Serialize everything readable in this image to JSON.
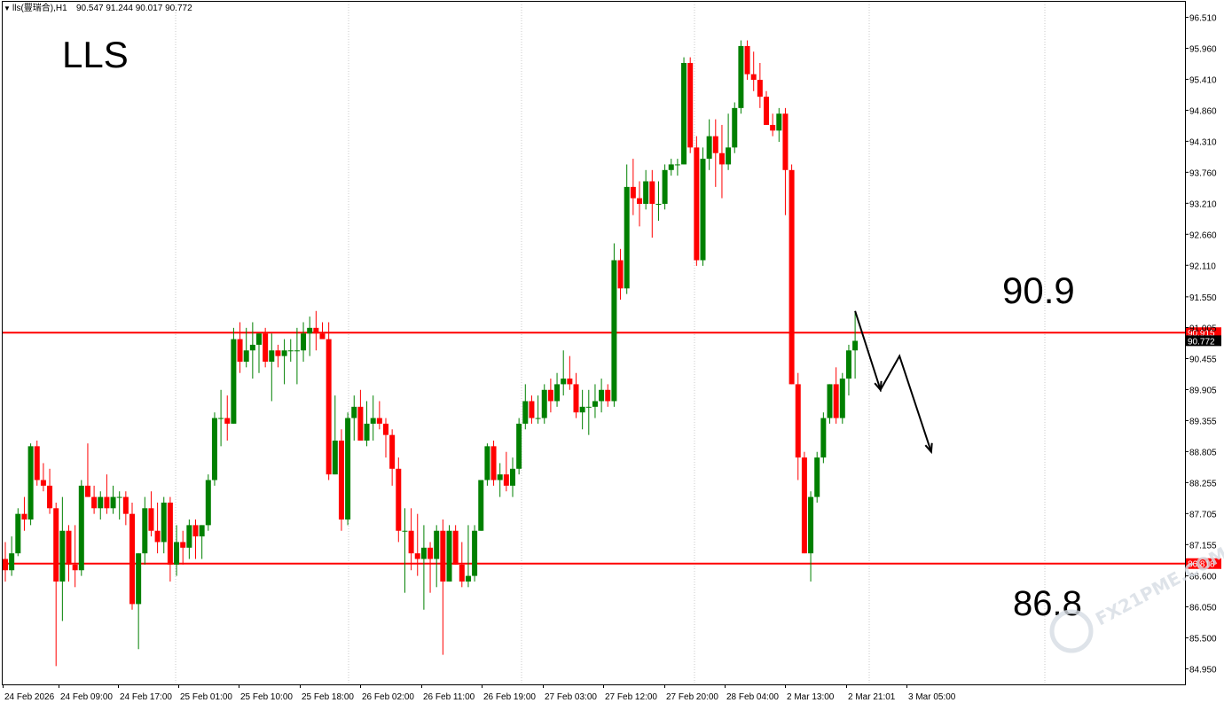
{
  "header": {
    "symbol_line": "lls(<span>),H1  90.547 91.244 90.017 90.772",
    "symbol": "lls(豐瑞合),H1",
    "ohlc": "90.547 91.244 90.017 90.772"
  },
  "annotations": {
    "title": "LLS",
    "resistance_label": "90.9",
    "support_label": "86.8",
    "watermark": "FX21PME.COM"
  },
  "colors": {
    "bull": "#008000",
    "bear": "#ff0000",
    "level_line": "#ff0000",
    "grid": "#c8c8c8",
    "arrow": "#000000"
  },
  "chart_data": {
    "type": "candlestick",
    "timeframe": "H1",
    "ylim": [
      84.675,
      96.785
    ],
    "y_ticks": [
      "96.510",
      "95.960",
      "95.410",
      "94.860",
      "94.310",
      "93.760",
      "93.210",
      "92.660",
      "92.110",
      "91.550",
      "91.005",
      "90.455",
      "89.905",
      "89.355",
      "88.805",
      "88.255",
      "87.705",
      "87.155",
      "86.600",
      "86.050",
      "85.500",
      "84.950"
    ],
    "x_ticks": [
      "24 Feb 2026",
      "24 Feb 09:00",
      "24 Feb 17:00",
      "25 Feb 01:00",
      "25 Feb 10:00",
      "25 Feb 18:00",
      "26 Feb 02:00",
      "26 Feb 11:00",
      "26 Feb 19:00",
      "27 Feb 03:00",
      "27 Feb 12:00",
      "27 Feb 20:00",
      "28 Feb 04:00",
      "2 Mar 13:00",
      "2 Mar 21:01",
      "3 Mar 05:00"
    ],
    "levels": [
      {
        "value": 90.915,
        "label": "90.915"
      },
      {
        "value": 86.818,
        "label": "86.818"
      }
    ],
    "current_price": {
      "value": 90.772,
      "label": "90.772"
    },
    "projection_path": [
      [
        0,
        91.3
      ],
      [
        4,
        89.9
      ],
      [
        7,
        90.5
      ],
      [
        12,
        88.8
      ]
    ],
    "ohlc": [
      [
        86.9,
        87.2,
        86.5,
        86.7
      ],
      [
        86.7,
        87.3,
        86.6,
        87.0
      ],
      [
        87.0,
        87.8,
        86.95,
        87.7
      ],
      [
        87.7,
        88.0,
        87.4,
        87.6
      ],
      [
        87.6,
        88.95,
        87.5,
        88.9
      ],
      [
        88.9,
        89.0,
        88.2,
        88.3
      ],
      [
        88.3,
        88.6,
        88.1,
        88.2
      ],
      [
        88.2,
        88.5,
        87.7,
        87.8
      ],
      [
        87.8,
        87.9,
        85.0,
        86.5
      ],
      [
        86.5,
        88.0,
        85.8,
        87.4
      ],
      [
        87.4,
        87.5,
        86.5,
        86.8
      ],
      [
        86.8,
        87.5,
        86.4,
        86.7
      ],
      [
        86.7,
        88.3,
        86.6,
        88.2
      ],
      [
        88.2,
        88.95,
        88.0,
        88.0
      ],
      [
        88.0,
        88.2,
        87.7,
        87.8
      ],
      [
        87.8,
        88.1,
        87.6,
        88.0
      ],
      [
        88.0,
        88.4,
        87.7,
        87.8
      ],
      [
        87.8,
        88.2,
        87.7,
        88.0
      ],
      [
        88.0,
        88.1,
        87.6,
        88.0
      ],
      [
        88.0,
        88.1,
        87.5,
        87.7
      ],
      [
        87.7,
        87.9,
        86.0,
        86.1
      ],
      [
        86.1,
        87.0,
        85.3,
        87.0
      ],
      [
        87.0,
        88.0,
        86.8,
        87.8
      ],
      [
        87.8,
        88.1,
        87.3,
        87.4
      ],
      [
        87.4,
        87.9,
        87.0,
        87.2
      ],
      [
        87.2,
        88.0,
        87.0,
        87.9
      ],
      [
        87.9,
        88.0,
        86.5,
        86.8
      ],
      [
        86.8,
        87.5,
        86.6,
        87.2
      ],
      [
        87.2,
        87.4,
        86.8,
        87.1
      ],
      [
        87.1,
        87.6,
        86.9,
        87.5
      ],
      [
        87.5,
        87.6,
        86.9,
        87.3
      ],
      [
        87.3,
        87.5,
        86.9,
        87.5
      ],
      [
        87.5,
        88.4,
        87.4,
        88.3
      ],
      [
        88.3,
        89.5,
        88.2,
        89.4
      ],
      [
        89.4,
        89.9,
        88.9,
        89.4
      ],
      [
        89.4,
        89.8,
        89.0,
        89.3
      ],
      [
        89.3,
        91.0,
        89.3,
        90.8
      ],
      [
        90.8,
        91.1,
        90.2,
        90.4
      ],
      [
        90.4,
        91.0,
        90.3,
        90.6
      ],
      [
        90.6,
        91.1,
        90.1,
        90.7
      ],
      [
        90.7,
        90.9,
        90.2,
        90.9
      ],
      [
        90.9,
        91.0,
        90.3,
        90.4
      ],
      [
        90.4,
        90.9,
        89.7,
        90.6
      ],
      [
        90.6,
        90.7,
        90.3,
        90.5
      ],
      [
        90.5,
        90.8,
        90.0,
        90.6
      ],
      [
        90.6,
        90.8,
        90.4,
        90.6
      ],
      [
        90.6,
        91.0,
        90.0,
        90.6
      ],
      [
        90.6,
        91.1,
        90.4,
        90.9
      ],
      [
        90.9,
        91.2,
        90.5,
        91.0
      ],
      [
        91.0,
        91.3,
        90.6,
        90.9
      ],
      [
        90.9,
        91.1,
        90.8,
        90.8
      ],
      [
        90.8,
        91.1,
        88.3,
        88.4
      ],
      [
        88.4,
        89.8,
        88.4,
        89.0
      ],
      [
        89.0,
        89.2,
        87.4,
        87.6
      ],
      [
        87.6,
        89.5,
        87.5,
        89.4
      ],
      [
        89.4,
        89.8,
        89.0,
        89.6
      ],
      [
        89.6,
        89.9,
        89.0,
        89.0
      ],
      [
        89.0,
        89.7,
        88.9,
        89.3
      ],
      [
        89.3,
        89.8,
        89.0,
        89.4
      ],
      [
        89.4,
        89.7,
        89.2,
        89.3
      ],
      [
        89.3,
        89.4,
        88.7,
        89.1
      ],
      [
        89.1,
        89.2,
        88.2,
        88.5
      ],
      [
        88.5,
        88.7,
        87.2,
        87.4
      ],
      [
        87.4,
        87.8,
        86.3,
        87.4
      ],
      [
        87.4,
        87.8,
        86.7,
        87.0
      ],
      [
        87.0,
        87.7,
        86.6,
        86.9
      ],
      [
        86.9,
        87.5,
        86.0,
        87.1
      ],
      [
        87.1,
        87.2,
        86.3,
        86.9
      ],
      [
        86.9,
        87.5,
        86.4,
        87.4
      ],
      [
        87.4,
        87.6,
        85.2,
        86.5
      ],
      [
        86.5,
        87.5,
        86.5,
        87.4
      ],
      [
        87.4,
        87.5,
        86.8,
        86.8
      ],
      [
        86.8,
        87.2,
        86.4,
        86.5
      ],
      [
        86.5,
        87.5,
        86.4,
        86.6
      ],
      [
        86.6,
        87.5,
        86.5,
        87.4
      ],
      [
        87.4,
        88.3,
        87.4,
        88.3
      ],
      [
        88.3,
        88.95,
        88.2,
        88.9
      ],
      [
        88.9,
        89.0,
        88.2,
        88.3
      ],
      [
        88.3,
        88.6,
        88.0,
        88.4
      ],
      [
        88.4,
        88.8,
        88.1,
        88.2
      ],
      [
        88.2,
        88.7,
        88.0,
        88.5
      ],
      [
        88.5,
        89.4,
        88.4,
        89.3
      ],
      [
        89.3,
        90.0,
        89.2,
        89.7
      ],
      [
        89.7,
        89.8,
        89.3,
        89.4
      ],
      [
        89.4,
        89.8,
        89.3,
        89.4
      ],
      [
        89.4,
        90.0,
        89.3,
        89.9
      ],
      [
        89.9,
        90.1,
        89.5,
        89.7
      ],
      [
        89.7,
        90.2,
        89.6,
        90.0
      ],
      [
        90.0,
        90.6,
        89.8,
        90.1
      ],
      [
        90.1,
        90.5,
        89.9,
        90.0
      ],
      [
        90.0,
        90.2,
        89.4,
        89.5
      ],
      [
        89.5,
        89.9,
        89.2,
        89.6
      ],
      [
        89.6,
        89.9,
        89.1,
        89.6
      ],
      [
        89.6,
        90.0,
        89.4,
        89.7
      ],
      [
        89.7,
        90.1,
        89.5,
        89.9
      ],
      [
        89.9,
        90.0,
        89.6,
        89.7
      ],
      [
        89.7,
        92.5,
        89.6,
        92.2
      ],
      [
        92.2,
        92.4,
        91.5,
        91.7
      ],
      [
        91.7,
        93.9,
        91.6,
        93.5
      ],
      [
        93.5,
        94.0,
        93.0,
        93.3
      ],
      [
        93.3,
        93.6,
        92.8,
        93.2
      ],
      [
        93.2,
        93.8,
        93.1,
        93.6
      ],
      [
        93.6,
        93.8,
        92.6,
        93.2
      ],
      [
        93.2,
        93.6,
        92.9,
        93.2
      ],
      [
        93.2,
        93.9,
        93.1,
        93.8
      ],
      [
        93.8,
        94.0,
        93.7,
        93.9
      ],
      [
        93.9,
        94.0,
        93.7,
        93.9
      ],
      [
        93.9,
        95.8,
        93.9,
        95.7
      ],
      [
        95.7,
        95.8,
        94.1,
        94.2
      ],
      [
        94.2,
        94.4,
        92.1,
        92.2
      ],
      [
        92.2,
        94.2,
        92.1,
        94.0
      ],
      [
        94.0,
        94.7,
        93.8,
        94.4
      ],
      [
        94.4,
        94.7,
        93.5,
        94.1
      ],
      [
        94.1,
        94.6,
        93.3,
        93.9
      ],
      [
        93.9,
        94.8,
        93.8,
        94.2
      ],
      [
        94.2,
        95.0,
        94.1,
        94.9
      ],
      [
        94.9,
        96.1,
        94.8,
        96.0
      ],
      [
        96.0,
        96.1,
        95.4,
        95.5
      ],
      [
        95.5,
        95.9,
        95.2,
        95.4
      ],
      [
        95.4,
        95.7,
        94.9,
        95.1
      ],
      [
        95.1,
        95.2,
        94.6,
        94.6
      ],
      [
        94.6,
        94.8,
        94.4,
        94.5
      ],
      [
        94.5,
        94.9,
        94.3,
        94.8
      ],
      [
        94.8,
        94.9,
        93.0,
        93.8
      ],
      [
        93.8,
        93.9,
        90.0,
        90.0
      ],
      [
        90.0,
        90.2,
        88.3,
        88.7
      ],
      [
        88.7,
        88.8,
        87.0,
        87.0
      ],
      [
        87.0,
        88.1,
        86.5,
        88.0
      ],
      [
        88.0,
        88.8,
        87.9,
        88.7
      ],
      [
        88.7,
        89.5,
        88.6,
        89.4
      ],
      [
        89.4,
        90.0,
        89.3,
        90.0
      ],
      [
        90.0,
        90.3,
        89.3,
        89.4
      ],
      [
        89.4,
        90.2,
        89.3,
        90.1
      ],
      [
        90.1,
        90.7,
        89.8,
        90.6
      ],
      [
        90.6,
        91.3,
        90.1,
        90.77
      ]
    ]
  }
}
